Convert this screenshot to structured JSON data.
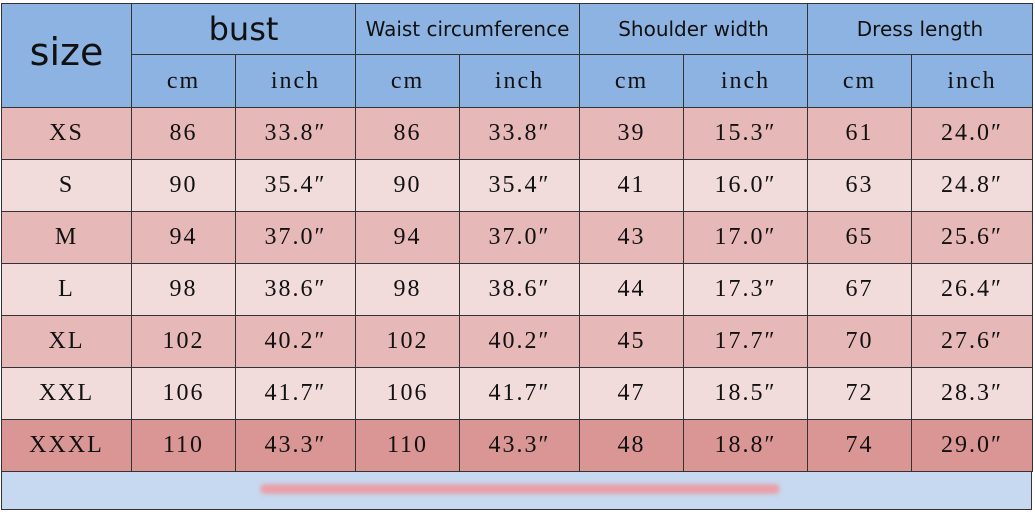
{
  "header": {
    "size": "size",
    "groups": [
      "bust",
      "Waist circumference",
      "Shoulder width",
      "Dress length"
    ],
    "units": [
      "cm",
      "inch",
      "cm",
      "inch",
      "cm",
      "inch",
      "cm",
      "inch"
    ]
  },
  "rows": [
    [
      "XS",
      "86",
      "33.8″",
      "86",
      "33.8″",
      "39",
      "15.3″",
      "61",
      "24.0″"
    ],
    [
      "S",
      "90",
      "35.4″",
      "90",
      "35.4″",
      "41",
      "16.0″",
      "63",
      "24.8″"
    ],
    [
      "M",
      "94",
      "37.0″",
      "94",
      "37.0″",
      "43",
      "17.0″",
      "65",
      "25.6″"
    ],
    [
      "L",
      "98",
      "38.6″",
      "98",
      "38.6″",
      "44",
      "17.3″",
      "67",
      "26.4″"
    ],
    [
      "XL",
      "102",
      "40.2″",
      "102",
      "40.2″",
      "45",
      "17.7″",
      "70",
      "27.6″"
    ],
    [
      "XXL",
      "106",
      "41.7″",
      "106",
      "41.7″",
      "47",
      "18.5″",
      "72",
      "28.3″"
    ],
    [
      "XXXL",
      "110",
      "43.3″",
      "110",
      "43.3″",
      "48",
      "18.8″",
      "74",
      "29.0″"
    ]
  ]
}
